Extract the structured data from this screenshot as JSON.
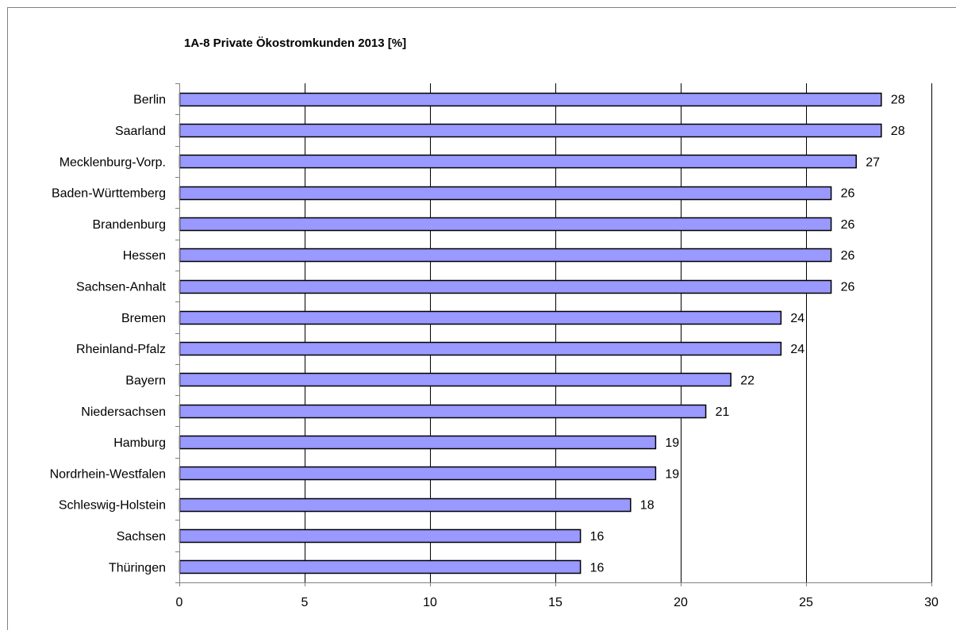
{
  "chart_data": {
    "type": "bar",
    "orientation": "horizontal",
    "title": "1A-8 Private Ökostromkunden 2013 [%]",
    "xlabel": "",
    "ylabel": "",
    "categories": [
      "Berlin",
      "Saarland",
      "Mecklenburg-Vorp.",
      "Baden-Württemberg",
      "Brandenburg",
      "Hessen",
      "Sachsen-Anhalt",
      "Bremen",
      "Rheinland-Pfalz",
      "Bayern",
      "Niedersachsen",
      "Hamburg",
      "Nordrhein-Westfalen",
      "Schleswig-Holstein",
      "Sachsen",
      "Thüringen"
    ],
    "values": [
      28,
      28,
      27,
      26,
      26,
      26,
      26,
      24,
      24,
      22,
      21,
      19,
      19,
      18,
      16,
      16
    ],
    "xlim": [
      0,
      30
    ],
    "ticks": [
      0,
      5,
      10,
      15,
      20,
      25,
      30
    ],
    "grid": true,
    "legend": "none",
    "colors": {
      "bar": "#9999ff",
      "bar_border": "#000000",
      "grid": "#000000",
      "axis": "#808080"
    }
  }
}
